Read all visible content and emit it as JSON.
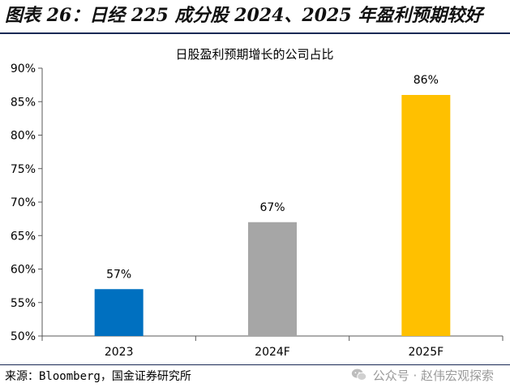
{
  "figure_title": "图表 26：日经 225 成分股 2024、2025 年盈利预期较好",
  "source_text": "来源：Bloomberg，国金证券研究所",
  "watermark_text": "公众号 · 赵伟宏观探索",
  "colors": {
    "title_rule": "#1a2a55",
    "bar_2023": "#0070c0",
    "bar_2024F": "#a6a6a6",
    "bar_2025F": "#ffc000",
    "axis": "#595959"
  },
  "chart_data": {
    "type": "bar",
    "title": "日股盈利预期增长的公司占比",
    "xlabel": "",
    "ylabel": "",
    "categories": [
      "2023",
      "2024F",
      "2025F"
    ],
    "values": [
      57,
      67,
      86
    ],
    "data_labels": [
      "57%",
      "67%",
      "86%"
    ],
    "colors": [
      "#0070c0",
      "#a6a6a6",
      "#ffc000"
    ],
    "ylim": [
      50,
      90
    ],
    "yticks": [
      50,
      55,
      60,
      65,
      70,
      75,
      80,
      85,
      90
    ],
    "ytick_labels": [
      "50%",
      "55%",
      "60%",
      "65%",
      "70%",
      "75%",
      "80%",
      "85%",
      "90%"
    ],
    "grid": false,
    "legend": "none"
  }
}
